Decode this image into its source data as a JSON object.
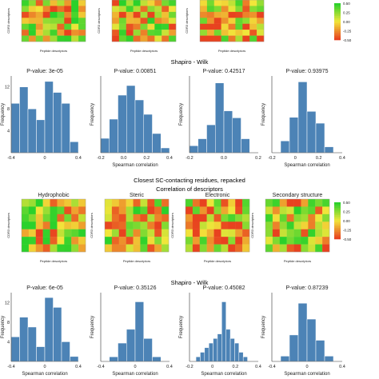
{
  "headings": {
    "shapiro_top": "Shapiro - Wilk",
    "section": "Closest SC-contacting residues, repacked",
    "correlation": "Correlation of descriptors",
    "shapiro_bottom": "Shapiro - Wilk"
  },
  "heatmap_axis": {
    "xlabel": "Peptide descriptors",
    "ylabel": "CDR3 descriptors"
  },
  "colorbar_ticks": [
    "0.50",
    "0.25",
    "0.00",
    "-0.25",
    "-0.50"
  ],
  "colors": {
    "bar": "#4c83b6",
    "high": "#2bd12b",
    "mid": "#f2e63a",
    "low": "#e8421f"
  },
  "chart_data": [
    {
      "type": "heatmap",
      "panel": "top-1",
      "title": "",
      "rows": 7,
      "cols": 9,
      "range": [
        -0.5,
        0.5
      ]
    },
    {
      "type": "heatmap",
      "panel": "top-2",
      "title": "",
      "rows": 7,
      "cols": 9,
      "range": [
        -0.5,
        0.5
      ]
    },
    {
      "type": "heatmap",
      "panel": "top-3",
      "title": "",
      "rows": 7,
      "cols": 9,
      "range": [
        -0.5,
        0.5
      ]
    },
    {
      "type": "bar",
      "panel": "hist-top-1",
      "title": "P-value:  3e-05",
      "xlabel": "",
      "ylabel": "Frequency",
      "x": [
        -0.35,
        -0.25,
        -0.15,
        -0.05,
        0.05,
        0.15,
        0.25,
        0.35
      ],
      "values": [
        9,
        12,
        8,
        6,
        13,
        11,
        9,
        2
      ],
      "xlim": [
        -0.4,
        0.4
      ],
      "ylim": [
        0,
        14
      ],
      "yticks": [
        4,
        8,
        12
      ],
      "xticks": [
        "-0.4",
        "0",
        "0.4"
      ]
    },
    {
      "type": "bar",
      "panel": "hist-top-2",
      "title": "P-value:  0.00851",
      "xlabel": "Spearman correlation",
      "ylabel": "Frequency",
      "x": [
        -0.35,
        -0.25,
        -0.15,
        -0.05,
        0.05,
        0.15,
        0.25,
        0.35
      ],
      "values": [
        3,
        7,
        12,
        14,
        11,
        8,
        4,
        1
      ],
      "xlim": [
        -0.4,
        0.4
      ],
      "ylim": [
        0,
        16
      ],
      "yticks": [],
      "xticks": [
        "-0.2",
        "0.0",
        "0.2",
        "0.4"
      ]
    },
    {
      "type": "bar",
      "panel": "hist-top-3",
      "title": "P-value:  0.42517",
      "xlabel": "",
      "ylabel": "Frequency",
      "x": [
        -0.35,
        -0.25,
        -0.15,
        -0.05,
        0.05,
        0.15,
        0.25,
        0.35
      ],
      "values": [
        1,
        2,
        4,
        10,
        6,
        5,
        2,
        0
      ],
      "xlim": [
        -0.4,
        0.4
      ],
      "ylim": [
        0,
        11
      ],
      "yticks": [],
      "xticks": [
        "-0.2",
        "0.0",
        "0.2"
      ]
    },
    {
      "type": "bar",
      "panel": "hist-top-4",
      "title": "P-value:  0.93975",
      "xlabel": "Spearman correlation",
      "ylabel": "Frequency",
      "x": [
        -0.25,
        -0.15,
        -0.05,
        0.05,
        0.15,
        0.25
      ],
      "values": [
        2,
        6,
        12,
        7,
        5,
        1
      ],
      "xlim": [
        -0.4,
        0.4
      ],
      "ylim": [
        0,
        13
      ],
      "yticks": [],
      "xticks": [
        "-0.2",
        "0",
        "0.2",
        "0.4"
      ]
    },
    {
      "type": "heatmap",
      "panel": "bottom-1",
      "title": "Hydrophobic",
      "rows": 7,
      "cols": 9,
      "range": [
        -0.5,
        0.5
      ]
    },
    {
      "type": "heatmap",
      "panel": "bottom-2",
      "title": "Steric",
      "rows": 7,
      "cols": 9,
      "range": [
        -0.5,
        0.5
      ]
    },
    {
      "type": "heatmap",
      "panel": "bottom-3",
      "title": "Electronic",
      "rows": 7,
      "cols": 9,
      "range": [
        -0.5,
        0.5
      ]
    },
    {
      "type": "heatmap",
      "panel": "bottom-4",
      "title": "Secondary structure",
      "rows": 7,
      "cols": 9,
      "range": [
        -0.5,
        0.5
      ]
    },
    {
      "type": "bar",
      "panel": "hist-bottom-1",
      "title": "P-value:  6e-05",
      "xlabel": "Spearman correlation",
      "ylabel": "Frequency",
      "x": [
        -0.35,
        -0.25,
        -0.15,
        -0.05,
        0.05,
        0.15,
        0.25,
        0.35
      ],
      "values": [
        5,
        9,
        7,
        3,
        13,
        11,
        4,
        1
      ],
      "xlim": [
        -0.4,
        0.4
      ],
      "ylim": [
        0,
        14
      ],
      "yticks": [
        4,
        8,
        12
      ],
      "xticks": [
        "-0.4",
        "0",
        "0.4"
      ]
    },
    {
      "type": "bar",
      "panel": "hist-bottom-2",
      "title": "P-value:  0.35126",
      "xlabel": "Spearman correlation",
      "ylabel": "Frequency",
      "x": [
        -0.25,
        -0.15,
        -0.05,
        0.05,
        0.15,
        0.25
      ],
      "values": [
        1,
        4,
        7,
        13,
        5,
        1
      ],
      "xlim": [
        -0.4,
        0.4
      ],
      "ylim": [
        0,
        15
      ],
      "yticks": [],
      "xticks": [
        "-0.4",
        "0",
        "0.4"
      ]
    },
    {
      "type": "bar",
      "panel": "hist-bottom-3",
      "title": "P-value:  0.45082",
      "xlabel": "Spearman correlation",
      "ylabel": "Frequency",
      "x": [
        -0.3,
        -0.25,
        -0.2,
        -0.15,
        -0.1,
        -0.05,
        0,
        0.05,
        0.1,
        0.15,
        0.2,
        0.25
      ],
      "values": [
        1,
        2,
        3,
        4,
        5,
        6,
        13,
        7,
        5,
        4,
        2,
        1
      ],
      "xlim": [
        -0.4,
        0.4
      ],
      "ylim": [
        0,
        15
      ],
      "yticks": [],
      "xticks": [
        "-0.2",
        "0",
        "0.2",
        "0.4"
      ]
    },
    {
      "type": "bar",
      "panel": "hist-bottom-4",
      "title": "P-value:  0.87239",
      "xlabel": "Spearman correlation",
      "ylabel": "Frequency",
      "x": [
        -0.25,
        -0.15,
        -0.05,
        0.05,
        0.15,
        0.25
      ],
      "values": [
        1,
        5,
        11,
        8,
        4,
        1
      ],
      "xlim": [
        -0.4,
        0.4
      ],
      "ylim": [
        0,
        13
      ],
      "yticks": [],
      "xticks": [
        "-0.4",
        "0",
        "0.4"
      ]
    }
  ]
}
